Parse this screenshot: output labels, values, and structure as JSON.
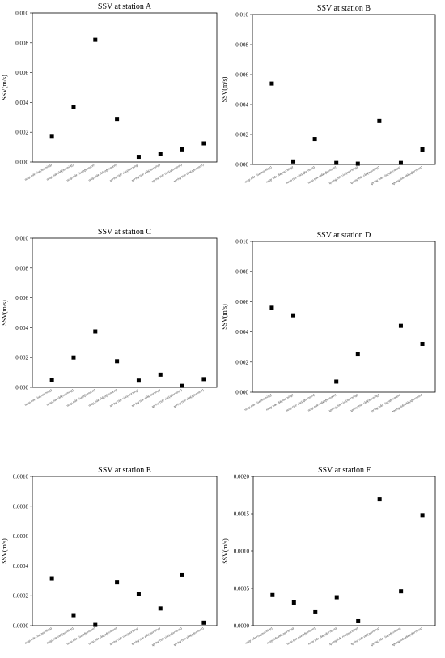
{
  "chart_data": [
    {
      "type": "scatter",
      "title": "SSV at station A",
      "ylabel": "SSV(m/s)",
      "ylim": [
        0,
        0.01
      ],
      "yticks": [
        "0.000",
        "0.002",
        "0.004",
        "0.006",
        "0.008",
        "0.010"
      ],
      "categories": [
        "neap tide rise(morning)",
        "neap tide ebb(morning)",
        "neap tide rise(afternoon)",
        "neap tide ebb(afternoon)",
        "spring tide rise(morning)",
        "spring tide ebb(morning)",
        "spring tide rise(afternoon)",
        "spring tide ebb(afternoon)"
      ],
      "values": [
        0.00175,
        0.0037,
        0.0082,
        0.0029,
        0.00035,
        0.00055,
        0.00085,
        0.00125
      ]
    },
    {
      "type": "scatter",
      "title": "SSV at station B",
      "ylabel": "SSV(m/s)",
      "ylim": [
        0,
        0.01
      ],
      "yticks": [
        "0.000",
        "0.002",
        "0.004",
        "0.006",
        "0.008",
        "0.010"
      ],
      "categories": [
        "neap tide rise(morning)",
        "neap tide ebb(morning)",
        "neap tide rise(afternoon)",
        "neap tide ebb(afternoon)",
        "spring tide rise(morning)",
        "spring tide ebb(morning)",
        "spring tide rise(afternoon)",
        "spring tide ebb(afternoon)"
      ],
      "values": [
        0.0054,
        0.0002,
        0.0017,
        0.0001,
        5e-05,
        0.0029,
        0.0001,
        0.001
      ]
    },
    {
      "type": "scatter",
      "title": "SSV at station C",
      "ylabel": "SSV(m/s)",
      "ylim": [
        0,
        0.01
      ],
      "yticks": [
        "0.000",
        "0.002",
        "0.004",
        "0.006",
        "0.008",
        "0.010"
      ],
      "categories": [
        "neap tide rise(morning)",
        "neap tide ebb(morning)",
        "neap tide rise(afternoon)",
        "neap tide ebb(afternoon)",
        "spring tide rise(morning)",
        "spring tide ebb(morning)",
        "spring tide rise(afternoon)",
        "spring tide ebb(afternoon)"
      ],
      "values": [
        0.0005,
        0.002,
        0.00375,
        0.00175,
        0.00045,
        0.00085,
        0.0001,
        0.00055
      ]
    },
    {
      "type": "scatter",
      "title": "SSV at station D",
      "ylabel": "SSV(m/s)",
      "ylim": [
        0,
        0.01
      ],
      "yticks": [
        "0.000",
        "0.002",
        "0.004",
        "0.006",
        "0.008",
        "0.010"
      ],
      "categories": [
        "neap tide rise(morning)",
        "neap tide ebb(morning)",
        "neap tide rise(afternoon)",
        "neap tide ebb(afternoon)",
        "spring tide rise(morning)",
        "spring tide ebb(morning)",
        "spring tide rise(afternoon)",
        "spring tide ebb(afternoon)"
      ],
      "values": [
        0.0056,
        0.0051,
        null,
        0.0007,
        0.00255,
        null,
        0.0044,
        0.0032
      ]
    },
    {
      "type": "scatter",
      "title": "SSV at station E",
      "ylabel": "SSV(m/s)",
      "ylim": [
        0,
        0.001
      ],
      "yticks": [
        "0.0000",
        "0.0002",
        "0.0004",
        "0.0006",
        "0.0008",
        "0.0010"
      ],
      "categories": [
        "neap tide rise(morning)",
        "neap tide ebb(morning)",
        "neap tide rise(afternoon)",
        "neap tide ebb(afternoon)",
        "spring tide rise(morning)",
        "spring tide ebb(morning)",
        "spring tide rise(afternoon)",
        "spring tide ebb(afternoon)"
      ],
      "values": [
        0.000315,
        6.5e-05,
        5e-06,
        0.00029,
        0.00021,
        0.000115,
        0.00034,
        2e-05
      ]
    },
    {
      "type": "scatter",
      "title": "SSV at station F",
      "ylabel": "SSV(m/s)",
      "ylim": [
        0,
        0.002
      ],
      "yticks": [
        "0.0000",
        "0.0005",
        "0.0010",
        "0.0015",
        "0.0020"
      ],
      "categories": [
        "neap tide rise(morning)",
        "neap tide ebb(morning)",
        "neap tide rise(afternoon)",
        "neap tide ebb(afternoon)",
        "spring tide rise(morning)",
        "spring tide ebb(morning)",
        "spring tide rise(afternoon)",
        "spring tide ebb(afternoon)"
      ],
      "values": [
        0.00041,
        0.00031,
        0.00018,
        0.00038,
        6e-05,
        0.0017,
        0.00046,
        0.00148
      ]
    }
  ]
}
